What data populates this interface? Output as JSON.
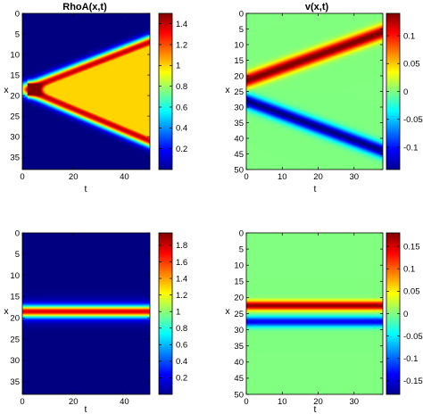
{
  "chart_data": [
    {
      "type": "heatmap",
      "title": "RhoA(x,t)",
      "xlabel": "t",
      "ylabel": "x",
      "xlim": [
        0,
        50
      ],
      "ylim": [
        38,
        0
      ],
      "y_reversed": true,
      "xticks": [
        "0",
        "20",
        "40"
      ],
      "yticks": [
        "0",
        "5",
        "10",
        "15",
        "20",
        "25",
        "30",
        "35"
      ],
      "colorbar": {
        "min": 0,
        "max": 1.5,
        "ticks": [
          "0.2",
          "0.4",
          "0.6",
          "0.8",
          "1",
          "1.2",
          "1.4"
        ]
      },
      "colormap": "jet",
      "pattern": "two bright fronts spreading from x≈18.5 at t≈2, reaching x≈7 and x≈31 at t=50",
      "annotation_values": {
        "source_x": 18.5,
        "source_t": 2,
        "front_top_end_x": 7,
        "front_bottom_end_x": 31,
        "peak_value": 1.4,
        "interior_value": 1.0
      }
    },
    {
      "type": "heatmap",
      "title": "v(x,t)",
      "xlabel": "t",
      "ylabel": "x",
      "xlim": [
        0,
        38
      ],
      "ylim": [
        50,
        0
      ],
      "y_reversed": true,
      "xticks": [
        "0",
        "10",
        "20",
        "30"
      ],
      "yticks": [
        "0",
        "5",
        "10",
        "15",
        "20",
        "25",
        "30",
        "35",
        "40",
        "45",
        "50"
      ],
      "colorbar": {
        "min": -0.14,
        "max": 0.14,
        "ticks": [
          "-0.1",
          "-0.05",
          "0",
          "0.05",
          "0.1"
        ]
      },
      "colormap": "jet",
      "pattern": "positive band from x≈21.5 (t=0) to x≈6 (t=38); negative band from x≈28 (t=0) to x≈44 (t=38)",
      "annotation_values": {
        "positive_start_x": 21.5,
        "positive_end_x": 6,
        "negative_start_x": 28,
        "negative_end_x": 44
      }
    },
    {
      "type": "heatmap",
      "title": "RhoA(x,t)",
      "xlabel": "t",
      "ylabel": "x",
      "xlim": [
        0,
        50
      ],
      "ylim": [
        38,
        0
      ],
      "y_reversed": true,
      "xticks": [
        "0",
        "20",
        "40"
      ],
      "yticks": [
        "0",
        "5",
        "10",
        "15",
        "20",
        "25",
        "30",
        "35"
      ],
      "colorbar": {
        "min": 0,
        "max": 1.95,
        "ticks": [
          "0.2",
          "0.4",
          "0.6",
          "0.8",
          "1",
          "1.2",
          "1.4",
          "1.6",
          "1.8"
        ]
      },
      "colormap": "jet",
      "pattern": "stationary band at x≈18.5 for all t",
      "annotation_values": {
        "band_x": 18.5,
        "peak_value": 1.5
      }
    },
    {
      "type": "heatmap",
      "title": "v(x,t)",
      "xlabel": "t",
      "ylabel": "x",
      "xlim": [
        0,
        38
      ],
      "ylim": [
        50,
        0
      ],
      "y_reversed": true,
      "xticks": [
        "0",
        "10",
        "20",
        "30"
      ],
      "yticks": [
        "0",
        "5",
        "10",
        "15",
        "20",
        "25",
        "30",
        "35",
        "40",
        "45",
        "50"
      ],
      "colorbar": {
        "min": -0.18,
        "max": 0.18,
        "ticks": [
          "-0.15",
          "-0.1",
          "-0.05",
          "0",
          "0.05",
          "0.1",
          "0.15"
        ]
      },
      "colormap": "jet",
      "pattern": "stationary positive band at x≈22.5 and negative band at x≈27.5 for all t",
      "annotation_values": {
        "positive_x": 22.5,
        "negative_x": 27.5
      }
    }
  ]
}
